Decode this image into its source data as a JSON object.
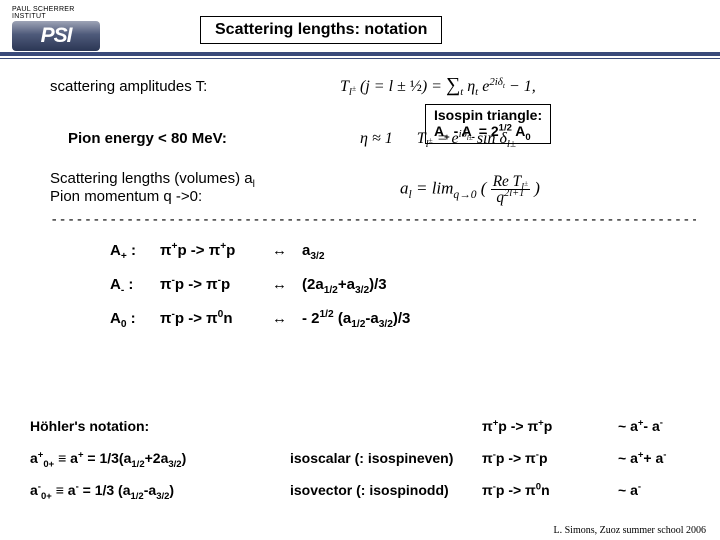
{
  "logo": {
    "institute": "PAUL SCHERRER INSTITUT",
    "abbr": "PSI"
  },
  "title": "Scattering lengths: notation",
  "line1": {
    "label": "scattering amplitudes T:",
    "formula": "T<sub>l<sup>±</sup></sub> (<i>j</i> = <i>l</i> ± <span style='font-style:normal'>½</span>) = <span style='font-size:1.25em'>∑</span><sub>t</sub> η<sub>t</sub> e<sup>2iδ<sub>t</sub></sup> − 1,"
  },
  "line2": {
    "label": "Pion energy < 80 MeV:",
    "formula": "η ≈ 1 &nbsp;&nbsp;&nbsp;&nbsp; <i>T</i><sub>l<sup>±</sup></sub> = e<sup>iδ<sub>l±</sub></sup> sin δ<sub>l±</sub>"
  },
  "line3": {
    "label1": "Scattering lengths (volumes) a",
    "label1_sub": "l",
    "label2": "Pion momentum q ->0:",
    "formula": "<i>a</i><sub>l</sub> = lim<sub>q→0</sub> ( <span style='display:inline-block;text-align:center;vertical-align:middle;font-size:0.9em;line-height:1'><span style='display:block;border-bottom:1px solid #000;padding:0 2px'>Re <i>T</i><sub>l<sup>±</sup></sub></span><span style='display:block;padding:0 2px'><i>q</i><sup>2l+1</sup></span></span> )"
  },
  "dashes": "-------------------------------------------------------------------------------",
  "channels": [
    {
      "name": "A<sub>+</sub> :",
      "proc": "π<sup>+</sup>p -> π<sup>+</sup>p",
      "arrow": "↔",
      "val": "a<sub>3/2</sub>"
    },
    {
      "name": "A<sub>-</sub> :",
      "proc": "π<sup>-</sup>p -> π<sup>-</sup>p",
      "arrow": "↔",
      "val": "(2a<sub>1/2</sub>+a<sub>3/2</sub>)/3"
    },
    {
      "name": "A<sub>0</sub> :",
      "proc": "π<sup>-</sup>p -> π<sup>0</sup>n",
      "arrow": "↔",
      "val": "- 2<sup>1/2</sup> (a<sub>1/2</sub>-a<sub>3/2</sub>)/3"
    }
  ],
  "isospin": {
    "title": "Isospin triangle:",
    "eq": "A<sub>+</sub> - A<sub>-</sub> = 2<sup>1/2</sup> A<sub>0</sub>"
  },
  "hoehler": {
    "title": "Höhler's notation:",
    "rows": [
      {
        "lhs": "",
        "mid": "",
        "proc": "π<sup>+</sup>p -> π<sup>+</sup>p",
        "rel": "~ a<sup>+</sup>- a<sup>-</sup>"
      },
      {
        "lhs": "a<sup>+</sup><sub>0+</sub> ≡ a<sup>+</sup> = 1/3(a<sub>1/2</sub>+2a<sub>3/2</sub>)",
        "mid": "isoscalar (: isospineven)",
        "proc": "π<sup>-</sup>p -> π<sup>-</sup>p",
        "rel": "~ a<sup>+</sup>+ a<sup>-</sup>"
      },
      {
        "lhs": "a<sup>-</sup><sub>0+</sub> ≡ a<sup>-</sup> = 1/3 (a<sub>1/2</sub>-a<sub>3/2</sub>)",
        "mid": "isovector (: isospinodd)",
        "proc": "π<sup>-</sup>p -> π<sup>0</sup>n",
        "rel": "~ a<sup>-</sup>"
      }
    ]
  },
  "footer": "L. Simons, Zuoz summer school 2006"
}
